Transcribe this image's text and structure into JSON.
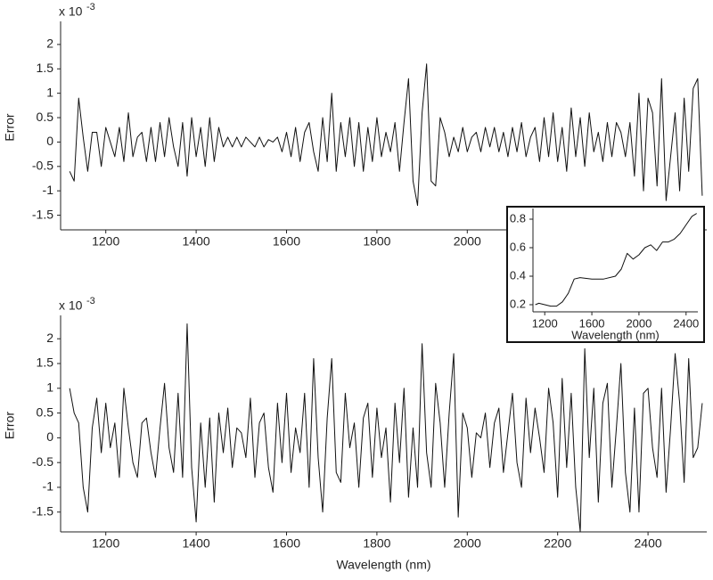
{
  "chart_data": [
    {
      "type": "line",
      "y_label": "Error",
      "y_scale": "x 10",
      "y_scale_exponent": "-3",
      "xlim": [
        1100,
        2530
      ],
      "xticks": [
        1200,
        1400,
        1600,
        1800,
        2000
      ],
      "ylim": [
        -1.8,
        2.4
      ],
      "yticks": [
        -1.5,
        -1,
        -0.5,
        0,
        0.5,
        1,
        1.5,
        2
      ],
      "x": [
        1120,
        1130,
        1140,
        1150,
        1160,
        1170,
        1180,
        1190,
        1200,
        1210,
        1220,
        1230,
        1240,
        1250,
        1260,
        1270,
        1280,
        1290,
        1300,
        1310,
        1320,
        1330,
        1340,
        1350,
        1360,
        1370,
        1380,
        1390,
        1400,
        1410,
        1420,
        1430,
        1440,
        1450,
        1460,
        1470,
        1480,
        1490,
        1500,
        1510,
        1520,
        1530,
        1540,
        1550,
        1560,
        1570,
        1580,
        1590,
        1600,
        1610,
        1620,
        1630,
        1640,
        1650,
        1660,
        1670,
        1680,
        1690,
        1700,
        1710,
        1720,
        1730,
        1740,
        1750,
        1760,
        1770,
        1780,
        1790,
        1800,
        1810,
        1820,
        1830,
        1840,
        1850,
        1860,
        1870,
        1880,
        1890,
        1900,
        1910,
        1920,
        1930,
        1940,
        1950,
        1960,
        1970,
        1980,
        1990,
        2000,
        2010,
        2020,
        2030,
        2040,
        2050,
        2060,
        2070,
        2080,
        2090,
        2100,
        2110,
        2120,
        2130,
        2140,
        2150,
        2160,
        2170,
        2180,
        2190,
        2200,
        2210,
        2220,
        2230,
        2240,
        2250,
        2260,
        2270,
        2280,
        2290,
        2300,
        2310,
        2320,
        2330,
        2340,
        2350,
        2360,
        2370,
        2380,
        2390,
        2400,
        2410,
        2420,
        2430,
        2440,
        2450,
        2460,
        2470,
        2480,
        2490,
        2500,
        2510,
        2520
      ],
      "series": [
        {
          "color": "#111111",
          "values": [
            -0.6,
            -0.8,
            0.9,
            0.1,
            -0.6,
            0.2,
            0.2,
            -0.5,
            0.3,
            0.0,
            -0.3,
            0.3,
            -0.4,
            0.6,
            -0.3,
            0.1,
            0.2,
            -0.4,
            0.3,
            -0.4,
            0.4,
            -0.3,
            0.5,
            -0.1,
            -0.5,
            0.4,
            -0.7,
            0.5,
            -0.3,
            0.3,
            -0.5,
            0.5,
            -0.4,
            0.3,
            -0.1,
            0.1,
            -0.1,
            0.1,
            -0.1,
            0.1,
            0.0,
            -0.1,
            0.1,
            -0.1,
            0.05,
            0.0,
            0.1,
            -0.2,
            0.2,
            -0.3,
            0.3,
            -0.4,
            0.2,
            0.4,
            -0.2,
            -0.6,
            0.5,
            -0.4,
            1.0,
            -0.6,
            0.4,
            -0.3,
            0.5,
            -0.5,
            0.4,
            -0.6,
            0.3,
            -0.4,
            0.5,
            -0.3,
            0.2,
            -0.2,
            0.4,
            -0.6,
            0.4,
            1.3,
            -0.8,
            -1.3,
            0.6,
            1.6,
            -0.8,
            -0.9,
            0.5,
            0.2,
            -0.3,
            0.1,
            -0.2,
            0.3,
            -0.2,
            0.1,
            0.2,
            -0.2,
            0.3,
            -0.1,
            0.3,
            -0.2,
            0.2,
            -0.3,
            0.3,
            -0.2,
            0.4,
            -0.3,
            0.1,
            0.3,
            -0.4,
            0.5,
            -0.3,
            0.6,
            -0.4,
            0.3,
            -0.6,
            0.7,
            -0.3,
            0.5,
            -0.5,
            0.6,
            -0.2,
            0.2,
            -0.4,
            0.4,
            -0.3,
            0.4,
            0.2,
            -0.3,
            0.4,
            -0.7,
            1.0,
            -1.0,
            0.9,
            0.6,
            -0.9,
            1.3,
            -1.2,
            -0.3,
            0.6,
            -1.0,
            0.9,
            -0.6,
            1.1,
            1.3,
            -1.1
          ]
        }
      ]
    },
    {
      "type": "line",
      "y_label": "Error",
      "x_label": "Wavelength (nm)",
      "y_scale": "x 10",
      "y_scale_exponent": "-3",
      "xlim": [
        1100,
        2530
      ],
      "xticks": [
        1200,
        1400,
        1600,
        1800,
        2000,
        2200,
        2400
      ],
      "ylim": [
        -1.9,
        2.4
      ],
      "yticks": [
        -1.5,
        -1,
        -0.5,
        0,
        0.5,
        1,
        1.5,
        2
      ],
      "x": [
        1120,
        1130,
        1140,
        1150,
        1160,
        1170,
        1180,
        1190,
        1200,
        1210,
        1220,
        1230,
        1240,
        1250,
        1260,
        1270,
        1280,
        1290,
        1300,
        1310,
        1320,
        1330,
        1340,
        1350,
        1360,
        1370,
        1380,
        1390,
        1400,
        1410,
        1420,
        1430,
        1440,
        1450,
        1460,
        1470,
        1480,
        1490,
        1500,
        1510,
        1520,
        1530,
        1540,
        1550,
        1560,
        1570,
        1580,
        1590,
        1600,
        1610,
        1620,
        1630,
        1640,
        1650,
        1660,
        1670,
        1680,
        1690,
        1700,
        1710,
        1720,
        1730,
        1740,
        1750,
        1760,
        1770,
        1780,
        1790,
        1800,
        1810,
        1820,
        1830,
        1840,
        1850,
        1860,
        1870,
        1880,
        1890,
        1900,
        1910,
        1920,
        1930,
        1940,
        1950,
        1960,
        1970,
        1980,
        1990,
        2000,
        2010,
        2020,
        2030,
        2040,
        2050,
        2060,
        2070,
        2080,
        2090,
        2100,
        2110,
        2120,
        2130,
        2140,
        2150,
        2160,
        2170,
        2180,
        2190,
        2200,
        2210,
        2220,
        2230,
        2240,
        2250,
        2260,
        2270,
        2280,
        2290,
        2300,
        2310,
        2320,
        2330,
        2340,
        2350,
        2360,
        2370,
        2380,
        2390,
        2400,
        2410,
        2420,
        2430,
        2440,
        2450,
        2460,
        2470,
        2480,
        2490,
        2500,
        2510,
        2520
      ],
      "series": [
        {
          "color": "#111111",
          "values": [
            1.0,
            0.5,
            0.3,
            -1.0,
            -1.5,
            0.2,
            0.8,
            -0.3,
            0.7,
            -0.2,
            0.3,
            -0.8,
            1.0,
            0.2,
            -0.5,
            -0.8,
            0.3,
            0.4,
            -0.3,
            -0.8,
            0.2,
            1.1,
            -0.2,
            -0.7,
            0.9,
            -0.8,
            2.3,
            -0.6,
            -1.7,
            0.3,
            -1.0,
            0.4,
            -1.3,
            0.5,
            -0.3,
            0.6,
            -0.6,
            0.2,
            0.1,
            -0.4,
            0.8,
            -0.8,
            0.3,
            0.5,
            -0.6,
            -1.1,
            0.7,
            -0.5,
            0.9,
            -0.7,
            0.2,
            -0.3,
            0.9,
            -1.0,
            1.6,
            -0.4,
            -1.5,
            0.4,
            1.6,
            -0.7,
            -0.9,
            0.9,
            -0.2,
            0.3,
            -1.0,
            0.4,
            0.7,
            -0.8,
            0.6,
            -0.4,
            0.2,
            -1.3,
            0.7,
            -0.5,
            1.0,
            -1.2,
            0.2,
            -1.0,
            1.9,
            -0.3,
            -1.0,
            1.1,
            0.3,
            -1.0,
            0.5,
            1.7,
            -1.6,
            0.5,
            0.2,
            -0.8,
            0.1,
            0.0,
            0.5,
            -0.6,
            0.3,
            0.6,
            -0.7,
            0.1,
            0.9,
            -0.5,
            -1.0,
            0.8,
            -0.3,
            0.6,
            0.0,
            -0.7,
            1.0,
            0.3,
            -1.2,
            1.2,
            -0.6,
            0.9,
            -1.0,
            -1.9,
            1.8,
            -0.4,
            1.0,
            -1.3,
            0.7,
            1.1,
            -1.0,
            0.2,
            1.5,
            -0.7,
            -1.5,
            0.6,
            -1.5,
            0.9,
            1.0,
            -0.2,
            -0.8,
            1.0,
            -1.1,
            0.2,
            1.7,
            0.7,
            -0.9,
            1.6,
            -0.4,
            -0.2,
            0.7
          ]
        }
      ]
    },
    {
      "type": "line",
      "x_label": "Wavelength (nm)",
      "xlim": [
        1100,
        2500
      ],
      "xticks": [
        1200,
        1600,
        2000,
        2400
      ],
      "ylim": [
        0.15,
        0.85
      ],
      "yticks": [
        0.2,
        0.4,
        0.6,
        0.8
      ],
      "x": [
        1120,
        1150,
        1200,
        1250,
        1300,
        1350,
        1400,
        1450,
        1500,
        1600,
        1700,
        1800,
        1850,
        1900,
        1950,
        2000,
        2050,
        2100,
        2150,
        2200,
        2250,
        2300,
        2350,
        2400,
        2450,
        2490
      ],
      "series": [
        {
          "color": "#111111",
          "values": [
            0.2,
            0.21,
            0.2,
            0.19,
            0.19,
            0.22,
            0.28,
            0.38,
            0.39,
            0.38,
            0.38,
            0.4,
            0.45,
            0.56,
            0.52,
            0.55,
            0.6,
            0.62,
            0.58,
            0.64,
            0.64,
            0.66,
            0.7,
            0.76,
            0.82,
            0.84
          ]
        }
      ]
    }
  ]
}
